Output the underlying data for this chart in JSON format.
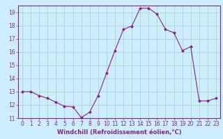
{
  "x": [
    0,
    1,
    2,
    3,
    4,
    5,
    6,
    7,
    8,
    9,
    10,
    11,
    12,
    13,
    14,
    15,
    16,
    17,
    18,
    19,
    20,
    21,
    22,
    23
  ],
  "y": [
    13.0,
    13.0,
    12.7,
    12.5,
    12.2,
    11.9,
    11.85,
    11.05,
    11.45,
    12.7,
    14.4,
    16.1,
    17.7,
    17.95,
    19.3,
    19.3,
    18.85,
    17.7,
    17.45,
    16.1,
    16.4,
    12.3,
    12.3,
    12.5
  ],
  "ylim": [
    11,
    19.5
  ],
  "yticks": [
    11,
    12,
    13,
    14,
    15,
    16,
    17,
    18,
    19
  ],
  "xlim": [
    -0.5,
    23.5
  ],
  "xticks": [
    0,
    1,
    2,
    3,
    4,
    5,
    6,
    7,
    8,
    9,
    10,
    11,
    12,
    13,
    14,
    15,
    16,
    17,
    18,
    19,
    20,
    21,
    22,
    23
  ],
  "xlabel": "Windchill (Refroidissement éolien,°C)",
  "line_color": "#882288",
  "marker": "D",
  "marker_size": 2.0,
  "bg_color": "#cceeff",
  "grid_color": "#aaccbb",
  "tick_color": "#882288",
  "label_color": "#882288",
  "spine_color": "#882288",
  "linewidth": 0.8,
  "tick_labelsize": 5.5,
  "xlabel_fontsize": 6.0
}
